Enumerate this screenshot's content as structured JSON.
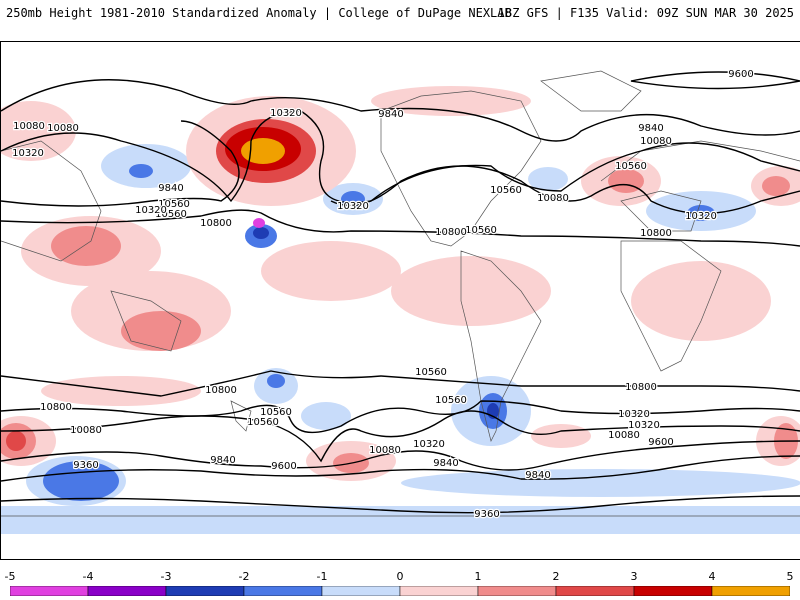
{
  "header": {
    "title_left": "250mb Height 1981-2010 Standardized Anomaly | College of DuPage NEXLAB",
    "title_right": "18Z GFS | F135 Valid: 09Z SUN MAR 30 2025"
  },
  "contour_labels": [
    "9600",
    "10080",
    "9840",
    "10320",
    "9840",
    "10560",
    "10080",
    "10800",
    "10560",
    "10320",
    "10080",
    "9840",
    "10560",
    "10320",
    "10560",
    "10320",
    "10080",
    "10800",
    "10800",
    "10560",
    "10800",
    "10800",
    "10560",
    "10800",
    "10560",
    "10320",
    "10560",
    "10320",
    "10080",
    "10080",
    "10320",
    "10560",
    "10320",
    "9360",
    "9840",
    "9600",
    "9840",
    "9600",
    "10080",
    "9840",
    "9360"
  ],
  "colorbar": {
    "ticks": [
      "-5",
      "-4",
      "-3",
      "-2",
      "-1",
      "0",
      "1",
      "2",
      "3",
      "4",
      "5"
    ],
    "colors": [
      "#e040e0",
      "#8a00c8",
      "#1e3cb4",
      "#4a78e6",
      "#c8dcfa",
      "#ffffff",
      "#fad2d2",
      "#f08c8c",
      "#e04848",
      "#c80000",
      "#f0a000"
    ]
  }
}
